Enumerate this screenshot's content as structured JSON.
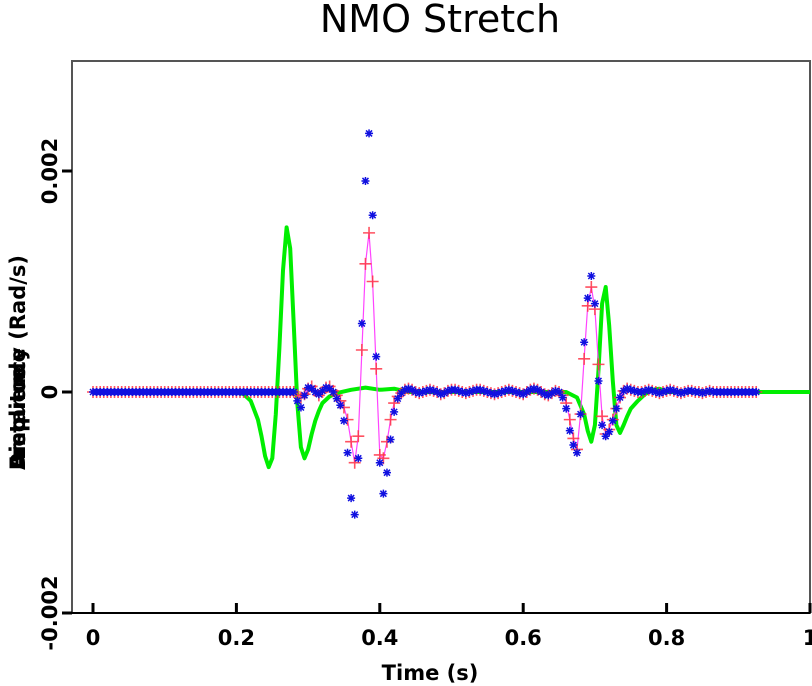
{
  "chart_data": {
    "type": "line",
    "title": "NMO Stretch",
    "xlabel": "Time (s)",
    "ylabels_overlapping": [
      "Frequency (Rad/s)",
      "Distance",
      "Amplitude"
    ],
    "xlim": [
      -0.03,
      1.0
    ],
    "ylim": [
      -0.002,
      0.003
    ],
    "xticks": [
      0,
      0.2,
      0.4,
      0.6,
      0.8,
      1
    ],
    "xtick_labels": [
      "0",
      "0.2",
      "0.4",
      "0.6",
      "0.8",
      "1"
    ],
    "yticks": [
      -0.002,
      0,
      0.002
    ],
    "ytick_labels": [
      "-0.002",
      "0",
      "0.002"
    ],
    "grid": false,
    "legend": "none",
    "colors": {
      "green_line": "#00ee00",
      "magenta_line": "#ff44ff",
      "red_marker": "#ff3344",
      "blue_marker": "#1010e0",
      "frame": "#555555"
    },
    "series": [
      {
        "name": "green-wavelet",
        "style": "line",
        "x": [
          0,
          0.2,
          0.21,
          0.22,
          0.23,
          0.235,
          0.24,
          0.245,
          0.25,
          0.255,
          0.26,
          0.265,
          0.27,
          0.275,
          0.28,
          0.285,
          0.29,
          0.295,
          0.3,
          0.305,
          0.31,
          0.315,
          0.32,
          0.33,
          0.34,
          0.36,
          0.38,
          0.4,
          0.42,
          0.44,
          0.6,
          0.66,
          0.675,
          0.685,
          0.69,
          0.695,
          0.7,
          0.705,
          0.71,
          0.715,
          0.72,
          0.725,
          0.73,
          0.735,
          0.74,
          0.745,
          0.75,
          0.76,
          0.77,
          0.78,
          0.79,
          0.8,
          1.0
        ],
        "y": [
          0,
          0,
          -2e-05,
          -8e-05,
          -0.00025,
          -0.0004,
          -0.00058,
          -0.00068,
          -0.0006,
          -0.0002,
          0.0004,
          0.0011,
          0.00149,
          0.0013,
          0.0006,
          -0.0001,
          -0.0005,
          -0.0006,
          -0.00052,
          -0.00038,
          -0.00026,
          -0.00017,
          -0.0001,
          -4e-05,
          -1e-05,
          2e-05,
          4e-05,
          2e-05,
          3e-05,
          0,
          0,
          0,
          -5e-05,
          -0.0002,
          -0.00035,
          -0.00045,
          -0.0003,
          0.0002,
          0.0008,
          0.00095,
          0.0006,
          0.0001,
          -0.0003,
          -0.00037,
          -0.0003,
          -0.00022,
          -0.00015,
          -8e-05,
          -2e-05,
          2e-05,
          3e-05,
          0,
          0
        ]
      },
      {
        "name": "red-plus-nmo",
        "style": "line+plus",
        "x_start": 0,
        "x_step": 0.005,
        "y": [
          0,
          0,
          0,
          0,
          0,
          0,
          0,
          0,
          0,
          0,
          0,
          0,
          0,
          0,
          0,
          0,
          0,
          0,
          0,
          0,
          0,
          0,
          0,
          0,
          0,
          0,
          0,
          0,
          0,
          0,
          0,
          0,
          0,
          0,
          0,
          0,
          0,
          0,
          0,
          0,
          0,
          0,
          0,
          0,
          0,
          0,
          0,
          0,
          0,
          0,
          0,
          0,
          0,
          0,
          0,
          0,
          0,
          -3e-05,
          -5e-05,
          -2e-05,
          3e-05,
          5e-05,
          1e-05,
          -3e-05,
          0,
          4e-05,
          5e-05,
          1e-05,
          -3e-05,
          -8e-05,
          -0.00014,
          -0.00025,
          -0.00045,
          -0.00064,
          -0.0004,
          0.00038,
          0.00116,
          0.00144,
          0.001,
          0.00021,
          -0.00057,
          -0.0006,
          -0.00045,
          -0.00025,
          -0.0001,
          -4e-05,
          -1e-05,
          2e-05,
          3e-05,
          2e-05,
          0,
          -1e-05,
          0,
          1e-05,
          2e-05,
          1e-05,
          0,
          -2e-05,
          -1e-05,
          1e-05,
          2e-05,
          2e-05,
          1e-05,
          0,
          -1e-05,
          0,
          1e-05,
          2e-05,
          2e-05,
          1e-05,
          0,
          -1e-05,
          -2e-05,
          -1e-05,
          0,
          1e-05,
          2e-05,
          1e-05,
          0,
          -1e-05,
          -2e-05,
          0,
          2e-05,
          3e-05,
          2e-05,
          0,
          -2e-05,
          -3e-05,
          -1e-05,
          1e-05,
          0,
          -3e-05,
          -0.0001,
          -0.00025,
          -0.00042,
          -0.00052,
          -0.0002,
          0.0003,
          0.00078,
          0.00095,
          0.00075,
          0.00025,
          -0.00022,
          -0.00038,
          -0.00034,
          -0.00025,
          -0.00015,
          -5e-05,
          1e-05,
          3e-05,
          2e-05,
          1e-05,
          0,
          0,
          1e-05,
          2e-05,
          1e-05,
          0,
          -1e-05,
          0,
          1e-05,
          2e-05,
          1e-05,
          0,
          -1e-05,
          0,
          1e-05,
          1e-05,
          0,
          0,
          -1e-05,
          0,
          1e-05,
          0,
          0,
          0,
          0,
          0,
          0,
          0,
          0,
          0,
          0,
          0,
          0,
          0
        ]
      },
      {
        "name": "blue-star-stretched",
        "style": "star",
        "x_start": 0,
        "x_step": 0.005,
        "y": [
          0,
          0,
          0,
          0,
          0,
          0,
          0,
          0,
          0,
          0,
          0,
          0,
          0,
          0,
          0,
          0,
          0,
          0,
          0,
          0,
          0,
          0,
          0,
          0,
          0,
          0,
          0,
          0,
          0,
          0,
          0,
          0,
          0,
          0,
          0,
          0,
          0,
          0,
          0,
          0,
          0,
          0,
          0,
          0,
          0,
          0,
          0,
          0,
          0,
          0,
          0,
          0,
          0,
          0,
          0,
          0,
          0,
          -8e-05,
          -0.00014,
          -3e-05,
          4e-05,
          3e-05,
          0,
          -2e-05,
          1e-05,
          4e-05,
          3e-05,
          0,
          -6e-05,
          -0.00012,
          -0.00026,
          -0.00055,
          -0.00096,
          -0.00111,
          -0.0006,
          0.00062,
          0.00191,
          0.00234,
          0.0016,
          0.00032,
          -0.00064,
          -0.00092,
          -0.00073,
          -0.00043,
          -0.00018,
          -6e-05,
          -1e-05,
          2e-05,
          3e-05,
          2e-05,
          0,
          -1e-05,
          0,
          1e-05,
          2e-05,
          1e-05,
          0,
          -2e-05,
          -1e-05,
          1e-05,
          2e-05,
          2e-05,
          1e-05,
          0,
          -1e-05,
          0,
          1e-05,
          2e-05,
          2e-05,
          1e-05,
          0,
          -1e-05,
          -2e-05,
          -1e-05,
          0,
          1e-05,
          2e-05,
          1e-05,
          0,
          -1e-05,
          -2e-05,
          0,
          2e-05,
          3e-05,
          2e-05,
          0,
          -2e-05,
          -3e-05,
          -1e-05,
          1e-05,
          0,
          -5e-05,
          -0.00015,
          -0.00035,
          -0.00048,
          -0.00055,
          -0.0002,
          0.00045,
          0.00085,
          0.00105,
          0.0008,
          0.0001,
          -0.0003,
          -0.0004,
          -0.00036,
          -0.00026,
          -0.00015,
          -5e-05,
          1e-05,
          3e-05,
          2e-05,
          1e-05,
          0,
          0,
          1e-05,
          2e-05,
          1e-05,
          0,
          -1e-05,
          0,
          1e-05,
          2e-05,
          1e-05,
          0,
          -1e-05,
          0,
          1e-05,
          1e-05,
          0,
          0,
          -1e-05,
          0,
          1e-05,
          0,
          0,
          0,
          0,
          0,
          0,
          0,
          0,
          0,
          0,
          0,
          0,
          0
        ]
      }
    ]
  }
}
